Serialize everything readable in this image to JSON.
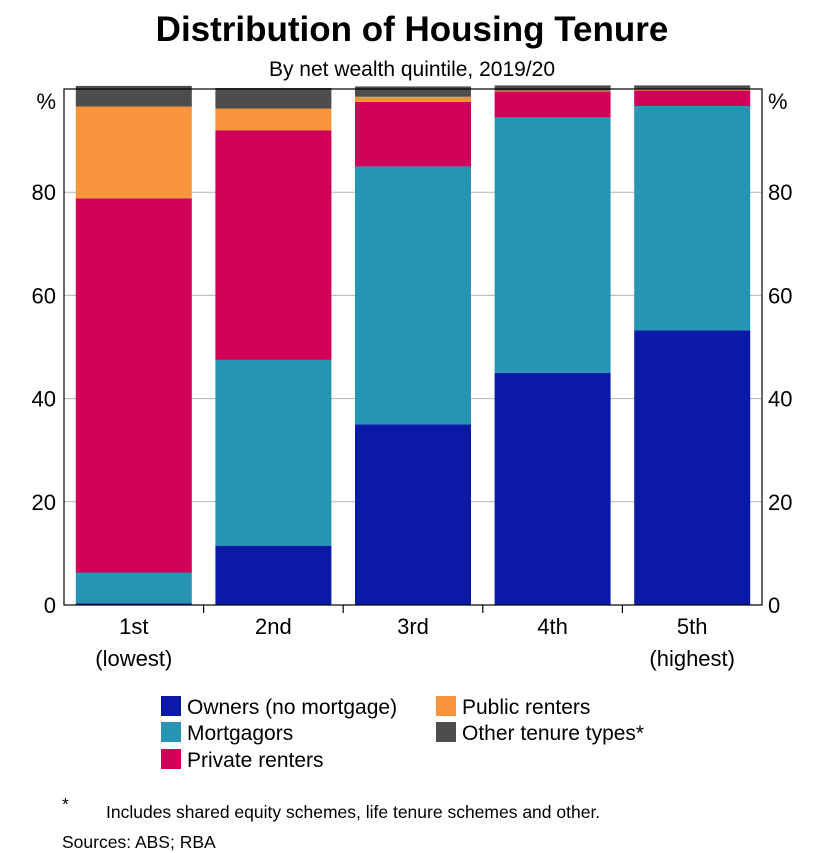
{
  "chart_data": {
    "type": "bar",
    "stacked": true,
    "title": "Distribution of Housing Tenure",
    "subtitle": "By net wealth quintile, 2019/20",
    "ylabel": "%",
    "ylim": [
      0,
      100
    ],
    "yticks": [
      0,
      20,
      40,
      60,
      80
    ],
    "categories": [
      [
        "1st",
        "(lowest)"
      ],
      [
        "2nd"
      ],
      [
        "3rd"
      ],
      [
        "4th"
      ],
      [
        "5th",
        "(highest)"
      ]
    ],
    "series": [
      {
        "name": "Owners (no mortgage)",
        "color": "#0a1aa6",
        "values": [
          0.3,
          11.5,
          35.0,
          45.0,
          53.2
        ]
      },
      {
        "name": "Mortgagors",
        "color": "#2894b4",
        "values": [
          6.0,
          36.0,
          50.0,
          49.5,
          43.5
        ]
      },
      {
        "name": "Private renters",
        "color": "#d10058",
        "values": [
          72.5,
          44.5,
          12.5,
          5.0,
          3.0
        ]
      },
      {
        "name": "Public renters",
        "color": "#f8953c",
        "values": [
          17.8,
          4.2,
          1.0,
          0.2,
          0.2
        ]
      },
      {
        "name": "Other tenure types*",
        "color": "#4d4d4d",
        "values": [
          4.0,
          4.0,
          2.0,
          1.0,
          0.8
        ]
      }
    ],
    "legend": [
      {
        "name": "Owners (no mortgage)",
        "color": "#0a1aa6"
      },
      {
        "name": "Public renters",
        "color": "#f8953c"
      },
      {
        "name": "Mortgagors",
        "color": "#2894b4"
      },
      {
        "name": "Other tenure types*",
        "color": "#4d4d4d"
      },
      {
        "name": "Private renters",
        "color": "#d10058"
      }
    ],
    "footnote_symbol": "*",
    "footnote_text": "Includes shared equity schemes, life tenure schemes and other.",
    "sources": "Sources: ABS; RBA"
  }
}
